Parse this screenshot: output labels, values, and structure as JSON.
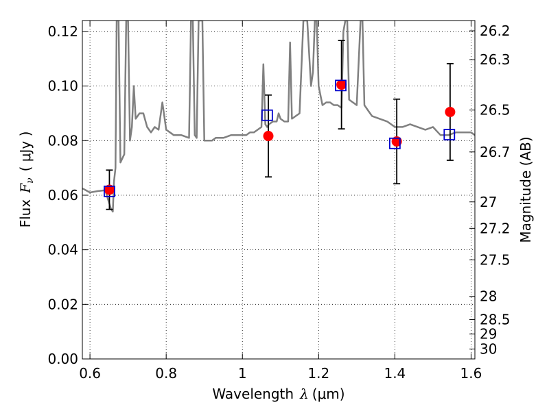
{
  "chart_data": {
    "type": "scatter",
    "xlabel": "Wavelength",
    "xlabel_math": "λ",
    "xlabel_unit": "(μm)",
    "ylabel": "Flux",
    "ylabel_math": "F",
    "ylabel_math_sub": "ν",
    "ylabel_unit": "( μJy )",
    "y2label": "Magnitude (AB)",
    "xlim": [
      0.58,
      1.61
    ],
    "ylim": [
      0.0,
      0.124
    ],
    "x_ticks": [
      0.6,
      0.8,
      1.0,
      1.2,
      1.4,
      1.6
    ],
    "x_tick_labels": [
      "0.6",
      "0.8",
      "1",
      "1.2",
      "1.4",
      "1.6"
    ],
    "y_ticks": [
      0.0,
      0.02,
      0.04,
      0.06,
      0.08,
      0.1,
      0.12
    ],
    "y_tick_labels": [
      "0.00",
      "0.02",
      "0.04",
      "0.06",
      "0.08",
      "0.10",
      "0.12"
    ],
    "mag_ticks": [
      26.2,
      26.3,
      26.5,
      26.7,
      27,
      27.2,
      27.5,
      28,
      28.5,
      29,
      30
    ],
    "mag_tick_labels": [
      "26.2",
      "26.3",
      "26.5",
      "26.7",
      "27",
      "27.2",
      "27.5",
      "28",
      "28.5",
      "29",
      "30"
    ],
    "grid": true,
    "colors": {
      "observed": "#ff0000",
      "model_photometry": "#0000cc",
      "spectrum": "#808080",
      "errorbar": "#000000"
    },
    "series": [
      {
        "kind": "line",
        "x": [
          0.58,
          0.6,
          0.62,
          0.64,
          0.655,
          0.66,
          0.663,
          0.667,
          0.67,
          0.675,
          0.68,
          0.69,
          0.695,
          0.7,
          0.705,
          0.71,
          0.715,
          0.72,
          0.73,
          0.74,
          0.75,
          0.76,
          0.77,
          0.78,
          0.79,
          0.8,
          0.81,
          0.82,
          0.84,
          0.86,
          0.865,
          0.87,
          0.875,
          0.88,
          0.885,
          0.89,
          0.895,
          0.9,
          0.91,
          0.92,
          0.93,
          0.95,
          0.97,
          0.99,
          1.0,
          1.01,
          1.02,
          1.03,
          1.04,
          1.05,
          1.055,
          1.06,
          1.065,
          1.07,
          1.08,
          1.09,
          1.095,
          1.1,
          1.11,
          1.12,
          1.125,
          1.13,
          1.14,
          1.15,
          1.16,
          1.17,
          1.18,
          1.185,
          1.19,
          1.195,
          1.2,
          1.21,
          1.22,
          1.23,
          1.24,
          1.25,
          1.26,
          1.265,
          1.27,
          1.275,
          1.28,
          1.29,
          1.3,
          1.31,
          1.315,
          1.32,
          1.33,
          1.34,
          1.36,
          1.38,
          1.4,
          1.42,
          1.44,
          1.46,
          1.48,
          1.5,
          1.52,
          1.54,
          1.56,
          1.58,
          1.6,
          1.61
        ],
        "y": [
          0.0625,
          0.061,
          0.0615,
          0.0618,
          0.055,
          0.054,
          0.065,
          0.07,
          0.124,
          0.124,
          0.072,
          0.075,
          0.124,
          0.124,
          0.08,
          0.085,
          0.1,
          0.088,
          0.09,
          0.09,
          0.085,
          0.083,
          0.085,
          0.084,
          0.094,
          0.084,
          0.083,
          0.082,
          0.082,
          0.081,
          0.124,
          0.124,
          0.082,
          0.081,
          0.124,
          0.124,
          0.124,
          0.08,
          0.08,
          0.08,
          0.081,
          0.081,
          0.082,
          0.082,
          0.082,
          0.082,
          0.083,
          0.083,
          0.084,
          0.085,
          0.108,
          0.086,
          0.085,
          0.086,
          0.087,
          0.087,
          0.09,
          0.088,
          0.087,
          0.087,
          0.116,
          0.088,
          0.089,
          0.09,
          0.124,
          0.124,
          0.1,
          0.105,
          0.124,
          0.124,
          0.1,
          0.093,
          0.094,
          0.094,
          0.093,
          0.093,
          0.092,
          0.12,
          0.124,
          0.124,
          0.095,
          0.094,
          0.093,
          0.124,
          0.124,
          0.093,
          0.091,
          0.089,
          0.088,
          0.087,
          0.085,
          0.085,
          0.086,
          0.085,
          0.084,
          0.085,
          0.082,
          0.082,
          0.083,
          0.083,
          0.083,
          0.082
        ]
      },
      {
        "kind": "points",
        "marker": "circle",
        "x": [
          0.651,
          1.068,
          1.26,
          1.405,
          1.545
        ],
        "y": [
          0.062,
          0.0817,
          0.1005,
          0.0797,
          0.0905
        ],
        "yerr": [
          0.0072,
          0.015,
          0.0162,
          0.0155,
          0.0177
        ]
      },
      {
        "kind": "points",
        "marker": "open-square",
        "x": [
          0.651,
          1.065,
          1.258,
          1.4,
          1.543
        ],
        "y": [
          0.0614,
          0.0893,
          0.1002,
          0.079,
          0.0822
        ]
      }
    ]
  }
}
